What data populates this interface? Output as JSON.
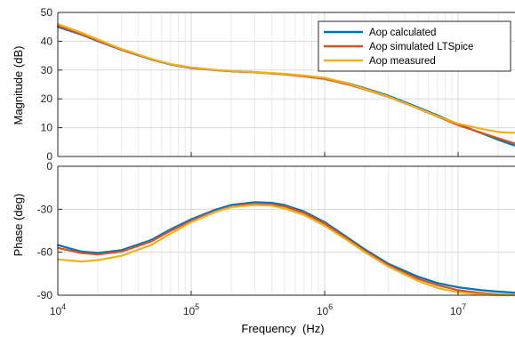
{
  "chart_data": [
    {
      "type": "line",
      "panel": "magnitude",
      "ylabel": "Magnitude (dB)",
      "xlabel": "",
      "xscale": "log",
      "xlim": [
        10000,
        30000000
      ],
      "ylim": [
        0,
        50
      ],
      "yticks": [
        0,
        10,
        20,
        30,
        40,
        50
      ],
      "grid": true,
      "legend": "top-right",
      "series": [
        {
          "name": "Aop calculated",
          "color": "#0072BD",
          "points": [
            [
              10000,
              45
            ],
            [
              15000,
              42.3
            ],
            [
              20000,
              40
            ],
            [
              30000,
              37
            ],
            [
              50000,
              33.7
            ],
            [
              70000,
              31.9
            ],
            [
              100000,
              30.7
            ],
            [
              150000,
              30
            ],
            [
              200000,
              29.6
            ],
            [
              300000,
              29.3
            ],
            [
              500000,
              28.6
            ],
            [
              700000,
              28
            ],
            [
              1000000,
              27.2
            ],
            [
              1500000,
              25.4
            ],
            [
              2000000,
              23.7
            ],
            [
              3000000,
              21.1
            ],
            [
              5000000,
              17.1
            ],
            [
              7000000,
              14.3
            ],
            [
              10000000,
              11.2
            ],
            [
              15000000,
              8.1
            ],
            [
              20000000,
              5.8
            ],
            [
              30000000,
              2.9
            ]
          ]
        },
        {
          "name": "Aop simulated LTSpice",
          "color": "#D95319",
          "points": [
            [
              10000,
              45.3
            ],
            [
              15000,
              42.5
            ],
            [
              20000,
              40.2
            ],
            [
              30000,
              37.1
            ],
            [
              50000,
              33.8
            ],
            [
              70000,
              32
            ],
            [
              100000,
              30.8
            ],
            [
              150000,
              30
            ],
            [
              200000,
              29.6
            ],
            [
              300000,
              29.2
            ],
            [
              500000,
              28.5
            ],
            [
              700000,
              27.8
            ],
            [
              1000000,
              26.9
            ],
            [
              1500000,
              25
            ],
            [
              2000000,
              23.3
            ],
            [
              3000000,
              20.7
            ],
            [
              5000000,
              16.7
            ],
            [
              7000000,
              13.9
            ],
            [
              10000000,
              10.9
            ],
            [
              15000000,
              8.2
            ],
            [
              20000000,
              6.3
            ],
            [
              30000000,
              3.8
            ]
          ]
        },
        {
          "name": "Aop measured",
          "color": "#EDB120",
          "points": [
            [
              10000,
              46
            ],
            [
              15000,
              43
            ],
            [
              20000,
              40.6
            ],
            [
              30000,
              37.3
            ],
            [
              50000,
              33.9
            ],
            [
              70000,
              32.1
            ],
            [
              100000,
              30.9
            ],
            [
              150000,
              30.1
            ],
            [
              200000,
              29.7
            ],
            [
              300000,
              29.3
            ],
            [
              500000,
              28.7
            ],
            [
              700000,
              28.1
            ],
            [
              1000000,
              27.3
            ],
            [
              1500000,
              25.3
            ],
            [
              2000000,
              23.5
            ],
            [
              3000000,
              20.8
            ],
            [
              5000000,
              16.8
            ],
            [
              7000000,
              14
            ],
            [
              10000000,
              11.4
            ],
            [
              15000000,
              9.6
            ],
            [
              20000000,
              8.5
            ],
            [
              25000000,
              8.2
            ],
            [
              30000000,
              8.4
            ]
          ]
        }
      ]
    },
    {
      "type": "line",
      "panel": "phase",
      "ylabel": "Phase (deg)",
      "xlabel": "Frequency  (Hz)",
      "xscale": "log",
      "xlim": [
        10000,
        30000000
      ],
      "ylim": [
        -90,
        0
      ],
      "yticks": [
        -90,
        -60,
        -30,
        0
      ],
      "grid": true,
      "series": [
        {
          "name": "Aop calculated",
          "color": "#0072BD",
          "points": [
            [
              10000,
              -55
            ],
            [
              15000,
              -59.5
            ],
            [
              20000,
              -60.5
            ],
            [
              30000,
              -58.5
            ],
            [
              50000,
              -51.5
            ],
            [
              70000,
              -44
            ],
            [
              100000,
              -37
            ],
            [
              150000,
              -30.5
            ],
            [
              200000,
              -27
            ],
            [
              300000,
              -25
            ],
            [
              400000,
              -25.5
            ],
            [
              500000,
              -27
            ],
            [
              700000,
              -31.5
            ],
            [
              1000000,
              -39
            ],
            [
              1500000,
              -50
            ],
            [
              2000000,
              -58
            ],
            [
              3000000,
              -68
            ],
            [
              5000000,
              -77
            ],
            [
              7000000,
              -81.5
            ],
            [
              10000000,
              -84.5
            ],
            [
              15000000,
              -86.5
            ],
            [
              20000000,
              -87.5
            ],
            [
              30000000,
              -88.5
            ]
          ]
        },
        {
          "name": "Aop simulated LTSpice",
          "color": "#D95319",
          "points": [
            [
              10000,
              -57
            ],
            [
              15000,
              -60.5
            ],
            [
              20000,
              -61.5
            ],
            [
              30000,
              -59.5
            ],
            [
              50000,
              -52.5
            ],
            [
              70000,
              -45
            ],
            [
              100000,
              -38
            ],
            [
              150000,
              -31.5
            ],
            [
              200000,
              -28
            ],
            [
              300000,
              -26
            ],
            [
              400000,
              -26.5
            ],
            [
              500000,
              -28
            ],
            [
              700000,
              -32.5
            ],
            [
              1000000,
              -40
            ],
            [
              1500000,
              -51
            ],
            [
              2000000,
              -59
            ],
            [
              3000000,
              -69
            ],
            [
              5000000,
              -78.5
            ],
            [
              7000000,
              -83
            ],
            [
              10000000,
              -86.5
            ],
            [
              15000000,
              -88.5
            ],
            [
              20000000,
              -89.5
            ],
            [
              30000000,
              -90
            ]
          ]
        },
        {
          "name": "Aop measured",
          "color": "#EDB120",
          "points": [
            [
              10000,
              -65
            ],
            [
              15000,
              -66.5
            ],
            [
              20000,
              -65.5
            ],
            [
              30000,
              -62.5
            ],
            [
              50000,
              -55
            ],
            [
              70000,
              -47
            ],
            [
              100000,
              -39
            ],
            [
              150000,
              -32
            ],
            [
              200000,
              -28.5
            ],
            [
              300000,
              -27
            ],
            [
              400000,
              -27.5
            ],
            [
              500000,
              -29.5
            ],
            [
              700000,
              -34
            ],
            [
              1000000,
              -41.5
            ],
            [
              1500000,
              -52
            ],
            [
              2000000,
              -60
            ],
            [
              3000000,
              -70
            ],
            [
              5000000,
              -80
            ],
            [
              7000000,
              -85
            ],
            [
              10000000,
              -88
            ],
            [
              15000000,
              -89.5
            ],
            [
              20000000,
              -90
            ],
            [
              30000000,
              -90
            ]
          ]
        }
      ]
    }
  ]
}
